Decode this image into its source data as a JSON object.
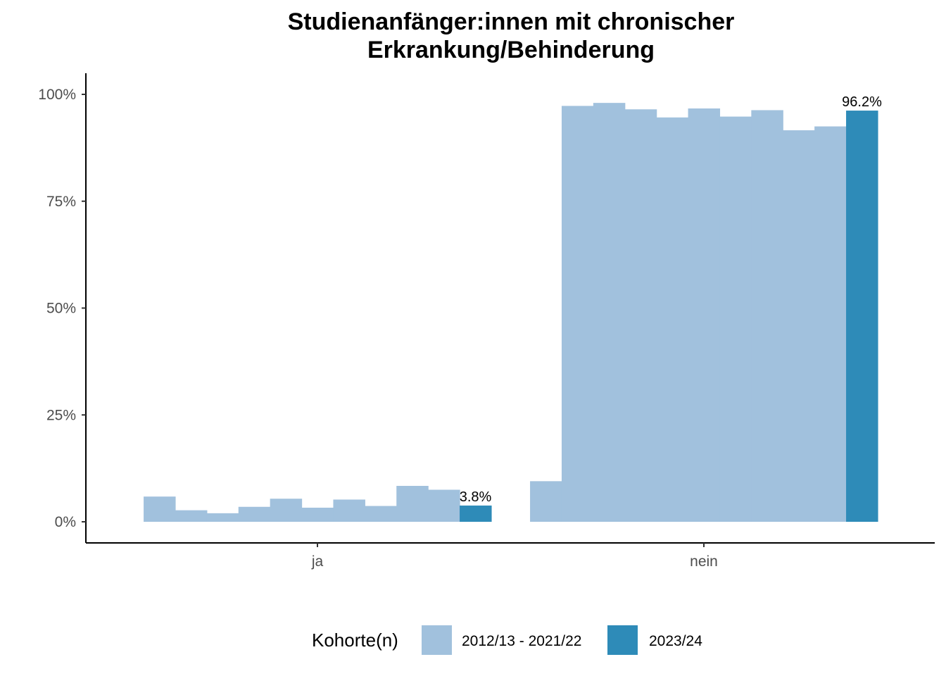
{
  "chart_data": {
    "type": "bar",
    "title_lines": [
      "Studienanfänger:innen mit chronischer",
      "Erkrankung/Behinderung"
    ],
    "xlabel": "",
    "ylabel": "",
    "ylim": [
      0,
      1.05
    ],
    "y_ticks": [
      {
        "value": 0,
        "label": "0%"
      },
      {
        "value": 0.25,
        "label": "25%"
      },
      {
        "value": 0.5,
        "label": "50%"
      },
      {
        "value": 0.75,
        "label": "75%"
      },
      {
        "value": 1.0,
        "label": "100%"
      }
    ],
    "categories": [
      "ja",
      "nein"
    ],
    "series": [
      {
        "group": "2012/13 - 2021/22",
        "color": "#a1c1dd",
        "values": [
          0.059,
          0.095
        ]
      },
      {
        "group": "2012/13 - 2021/22",
        "color": "#a1c1dd",
        "values": [
          0.027,
          0.973
        ]
      },
      {
        "group": "2012/13 - 2021/22",
        "color": "#a1c1dd",
        "values": [
          0.02,
          0.98
        ]
      },
      {
        "group": "2012/13 - 2021/22",
        "color": "#a1c1dd",
        "values": [
          0.035,
          0.965
        ]
      },
      {
        "group": "2012/13 - 2021/22",
        "color": "#a1c1dd",
        "values": [
          0.054,
          0.946
        ]
      },
      {
        "group": "2012/13 - 2021/22",
        "color": "#a1c1dd",
        "values": [
          0.033,
          0.967
        ]
      },
      {
        "group": "2012/13 - 2021/22",
        "color": "#a1c1dd",
        "values": [
          0.052,
          0.948
        ]
      },
      {
        "group": "2012/13 - 2021/22",
        "color": "#a1c1dd",
        "values": [
          0.037,
          0.963
        ]
      },
      {
        "group": "2012/13 - 2021/22",
        "color": "#a1c1dd",
        "values": [
          0.084,
          0.916
        ]
      },
      {
        "group": "2012/13 - 2021/22",
        "color": "#a1c1dd",
        "values": [
          0.075,
          0.925
        ]
      },
      {
        "group": "2023/24",
        "color": "#2e8bb8",
        "values": [
          0.038,
          0.962
        ],
        "labels": [
          "3.8%",
          "96.2%"
        ]
      }
    ],
    "legend": {
      "title": "Kohorte(n)",
      "position": "bottom",
      "entries": [
        {
          "label": "2012/13 - 2021/22",
          "color": "#a1c1dd"
        },
        {
          "label": "2023/24",
          "color": "#2e8bb8"
        }
      ]
    },
    "grid": false
  }
}
